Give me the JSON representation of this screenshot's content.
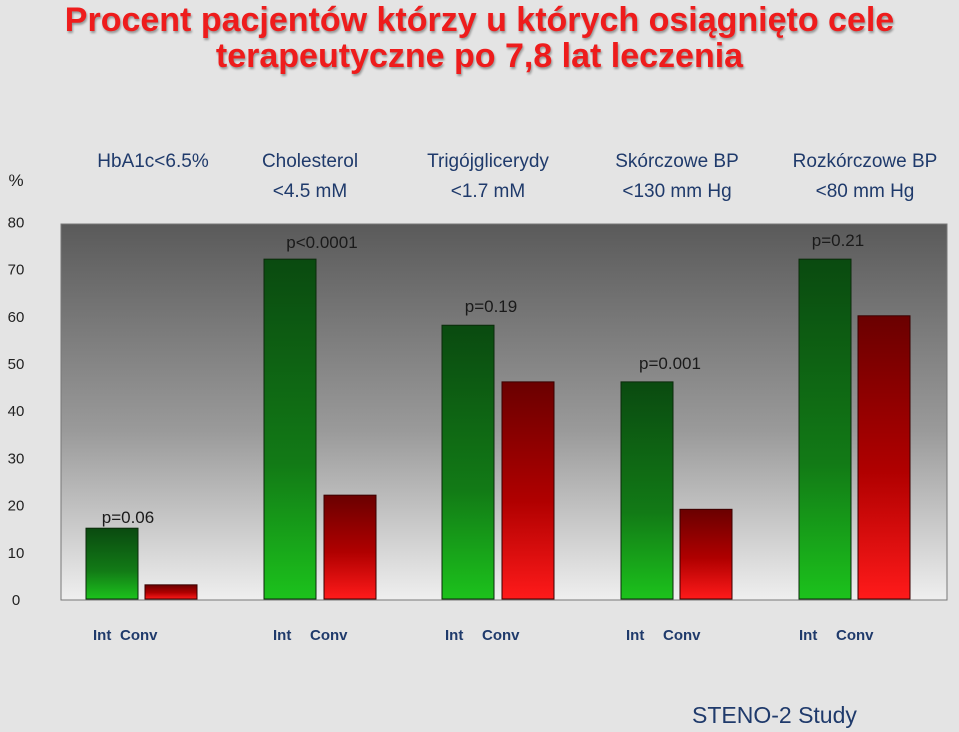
{
  "title_lines": [
    "Procent pacjentów którzy u których osiągnięto cele",
    "terapeutyczne  po 7,8 lat leczenia"
  ],
  "footer": "STENO-2  Study",
  "colors": {
    "title": "#ee1c1c",
    "footer": "#1f3a6b"
  },
  "chart_data": {
    "type": "bar",
    "ylabel": "%",
    "yticks": [
      0,
      10,
      20,
      30,
      40,
      50,
      60,
      70,
      80
    ],
    "ylim": [
      0,
      82
    ],
    "grid": false,
    "groups": [
      {
        "label_lines": [
          "HbA1c<6.5%"
        ],
        "categories": [
          "Int",
          "Conv"
        ],
        "values": [
          15,
          3
        ],
        "pvalue": "p=0.06"
      },
      {
        "label_lines": [
          "Cholesterol",
          "<4.5 mM"
        ],
        "categories": [
          "Int",
          "Conv"
        ],
        "values": [
          72,
          22
        ],
        "pvalue": "p<0.0001"
      },
      {
        "label_lines": [
          "Trigójglicerydy",
          "<1.7 mM"
        ],
        "categories": [
          "Int",
          "Conv"
        ],
        "values": [
          58,
          46
        ],
        "pvalue": "p=0.19"
      },
      {
        "label_lines": [
          "Skórczowe  BP",
          "<130 mm Hg"
        ],
        "categories": [
          "Int",
          "Conv"
        ],
        "values": [
          46,
          19
        ],
        "pvalue": "p=0.001"
      },
      {
        "label_lines": [
          "Rozkórczowe BP",
          "<80 mm Hg"
        ],
        "categories": [
          "Int",
          "Conv"
        ],
        "values": [
          72,
          60
        ],
        "pvalue": "p=0.21"
      }
    ],
    "colors": {
      "int_top": "#0a4a10",
      "int_bottom": "#1cc21c",
      "conv_top": "#6a0000",
      "conv_bottom": "#ff1a1a"
    }
  }
}
